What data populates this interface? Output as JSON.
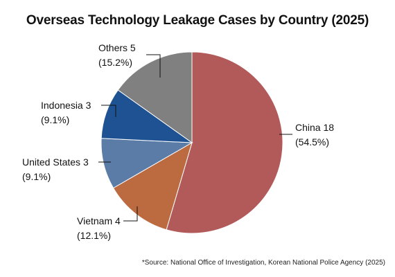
{
  "chart_data": {
    "type": "pie",
    "title": "Overseas Technology Leakage Cases by Country (2025)",
    "slices": [
      {
        "label": "China 18",
        "pct_label": "(54.5%)",
        "value": 18,
        "percent": 54.5,
        "color": "#b25a5a"
      },
      {
        "label": "Vietnam 4",
        "pct_label": "(12.1%)",
        "value": 4,
        "percent": 12.1,
        "color": "#bc6a40"
      },
      {
        "label": "United States 3",
        "pct_label": "(9.1%)",
        "value": 3,
        "percent": 9.1,
        "color": "#5a7ca6"
      },
      {
        "label": "Indonesia 3",
        "pct_label": "(9.1%)",
        "value": 3,
        "percent": 9.1,
        "color": "#1e5293"
      },
      {
        "label": "Others 5",
        "pct_label": "(15.2%)",
        "value": 5,
        "percent": 15.2,
        "color": "#808080"
      }
    ],
    "source": "*Source: National Office of Investigation, Korean National Police Agency (2025)"
  }
}
